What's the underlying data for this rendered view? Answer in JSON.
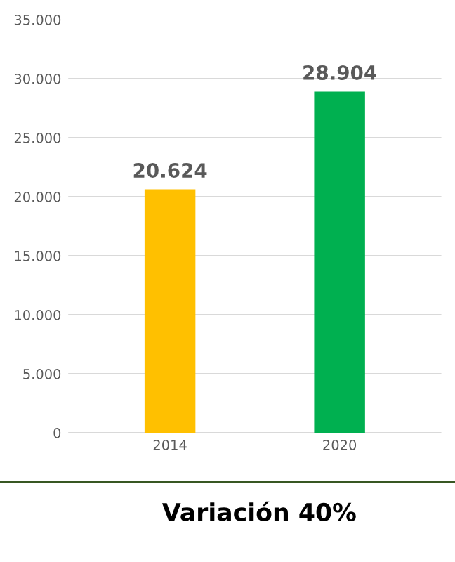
{
  "chart_data": {
    "type": "bar",
    "categories": [
      "2014",
      "2020"
    ],
    "values": [
      20624,
      28904
    ],
    "colors": [
      "#ffc000",
      "#00b050"
    ],
    "value_labels": [
      "20.624",
      "28.904"
    ],
    "ylim": [
      0,
      35000
    ],
    "yticks": [
      0,
      {
        "value": 5000,
        "label": "5.000"
      },
      {
        "value": 10000,
        "label": "10.000"
      },
      {
        "value": 15000,
        "label": "15.000"
      },
      {
        "value": 20000,
        "label": "20.000"
      },
      {
        "value": 25000,
        "label": "25.000"
      },
      {
        "value": 30000,
        "label": "30.000"
      },
      {
        "value": 35000,
        "label": "35.000"
      }
    ],
    "grid": "y",
    "annotations": [
      "Variación 40%"
    ]
  }
}
